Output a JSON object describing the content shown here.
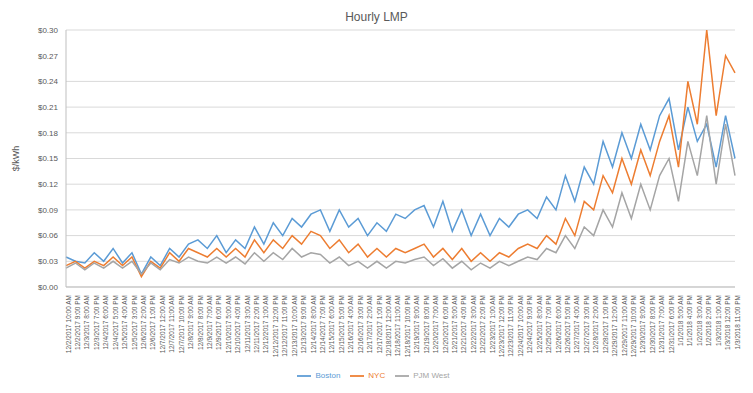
{
  "chart_data": {
    "type": "line",
    "title": "Hourly LMP",
    "y_label": "$/kWh",
    "categories": [
      "12/2/2017 10:00 AM",
      "12/2/2017 9:00 PM",
      "12/3/2017 8:00 AM",
      "12/3/2017 7:00 PM",
      "12/4/2017 6:00 AM",
      "12/4/2017 5:00 PM",
      "12/5/2017 4:00 AM",
      "12/5/2017 3:00 PM",
      "12/6/2017 2:00 AM",
      "12/6/2017 1:00 PM",
      "12/7/2017 12:00 AM",
      "12/7/2017 11:00 AM",
      "12/7/2017 10:00 PM",
      "12/8/2017 9:00 AM",
      "12/8/2017 8:00 PM",
      "12/9/2017 7:00 AM",
      "12/9/2017 6:00 PM",
      "12/10/2017 5:00 AM",
      "12/10/2017 4:00 PM",
      "12/11/2017 3:00 AM",
      "12/11/2017 2:00 PM",
      "12/12/2017 1:00 AM",
      "12/12/2017 12:00 PM",
      "12/12/2017 11:00 PM",
      "12/13/2017 10:00 AM",
      "12/13/2017 9:00 PM",
      "12/14/2017 8:00 AM",
      "12/14/2017 7:00 PM",
      "12/15/2017 6:00 AM",
      "12/15/2017 5:00 PM",
      "12/16/2017 4:00 AM",
      "12/16/2017 3:00 PM",
      "12/17/2017 2:00 AM",
      "12/17/2017 1:00 PM",
      "12/18/2017 12:00 AM",
      "12/18/2017 11:00 AM",
      "12/18/2017 10:00 PM",
      "12/19/2017 9:00 AM",
      "12/19/2017 8:00 PM",
      "12/20/2017 7:00 AM",
      "12/20/2017 6:00 PM",
      "12/21/2017 5:00 AM",
      "12/21/2017 4:00 PM",
      "12/22/2017 3:00 AM",
      "12/22/2017 2:00 PM",
      "12/23/2017 1:00 AM",
      "12/23/2017 12:00 PM",
      "12/23/2017 11:00 PM",
      "12/24/2017 10:00 AM",
      "12/24/2017 9:00 PM",
      "12/25/2017 8:00 AM",
      "12/25/2017 7:00 PM",
      "12/26/2017 6:00 AM",
      "12/26/2017 5:00 PM",
      "12/27/2017 4:00 AM",
      "12/27/2017 3:00 PM",
      "12/28/2017 2:00 AM",
      "12/28/2017 1:00 PM",
      "12/29/2017 12:00 AM",
      "12/29/2017 11:00 AM",
      "12/29/2017 10:00 PM",
      "12/30/2017 9:00 AM",
      "12/30/2017 8:00 PM",
      "12/31/2017 7:00 AM",
      "12/31/2017 6:00 PM",
      "1/1/2018 5:00 AM",
      "1/1/2018 4:00 PM",
      "1/2/2018 3:00 AM",
      "1/2/2018 2:00 PM",
      "1/3/2018 1:00 AM",
      "1/3/2018 12:00 PM",
      "1/3/2018 11:00 PM"
    ],
    "series": [
      {
        "name": "Boston",
        "color": "#5b9bd5",
        "values": [
          0.035,
          0.03,
          0.028,
          0.04,
          0.03,
          0.045,
          0.028,
          0.04,
          0.015,
          0.035,
          0.025,
          0.045,
          0.035,
          0.05,
          0.055,
          0.045,
          0.06,
          0.04,
          0.055,
          0.045,
          0.07,
          0.05,
          0.075,
          0.06,
          0.08,
          0.07,
          0.085,
          0.09,
          0.065,
          0.09,
          0.07,
          0.08,
          0.06,
          0.075,
          0.065,
          0.085,
          0.08,
          0.09,
          0.095,
          0.07,
          0.1,
          0.065,
          0.09,
          0.06,
          0.085,
          0.06,
          0.08,
          0.07,
          0.085,
          0.09,
          0.08,
          0.105,
          0.09,
          0.13,
          0.1,
          0.14,
          0.12,
          0.17,
          0.14,
          0.18,
          0.15,
          0.19,
          0.16,
          0.2,
          0.22,
          0.16,
          0.21,
          0.17,
          0.19,
          0.14,
          0.2,
          0.15
        ]
      },
      {
        "name": "NYC",
        "color": "#ed7d31",
        "values": [
          0.025,
          0.03,
          0.022,
          0.03,
          0.025,
          0.035,
          0.025,
          0.035,
          0.012,
          0.03,
          0.022,
          0.04,
          0.03,
          0.045,
          0.04,
          0.035,
          0.045,
          0.035,
          0.045,
          0.035,
          0.055,
          0.04,
          0.055,
          0.045,
          0.06,
          0.05,
          0.065,
          0.06,
          0.045,
          0.055,
          0.04,
          0.05,
          0.035,
          0.045,
          0.035,
          0.045,
          0.04,
          0.045,
          0.05,
          0.035,
          0.045,
          0.032,
          0.045,
          0.03,
          0.04,
          0.03,
          0.04,
          0.035,
          0.045,
          0.05,
          0.045,
          0.06,
          0.05,
          0.08,
          0.06,
          0.1,
          0.09,
          0.13,
          0.11,
          0.15,
          0.12,
          0.16,
          0.13,
          0.17,
          0.2,
          0.14,
          0.24,
          0.19,
          0.3,
          0.2,
          0.27,
          0.25
        ]
      },
      {
        "name": "PJM West",
        "color": "#a5a5a5",
        "values": [
          0.022,
          0.028,
          0.02,
          0.028,
          0.022,
          0.03,
          0.022,
          0.03,
          0.015,
          0.028,
          0.02,
          0.032,
          0.028,
          0.035,
          0.03,
          0.028,
          0.035,
          0.028,
          0.035,
          0.027,
          0.04,
          0.03,
          0.04,
          0.032,
          0.045,
          0.035,
          0.04,
          0.038,
          0.028,
          0.035,
          0.025,
          0.03,
          0.022,
          0.03,
          0.022,
          0.03,
          0.028,
          0.032,
          0.035,
          0.025,
          0.033,
          0.022,
          0.03,
          0.02,
          0.028,
          0.022,
          0.03,
          0.025,
          0.03,
          0.035,
          0.032,
          0.045,
          0.04,
          0.06,
          0.045,
          0.07,
          0.06,
          0.09,
          0.07,
          0.11,
          0.08,
          0.12,
          0.09,
          0.13,
          0.15,
          0.1,
          0.17,
          0.13,
          0.2,
          0.12,
          0.19,
          0.13
        ]
      }
    ],
    "ylim": [
      0,
      0.3
    ],
    "yticks": [
      {
        "value": 0,
        "label": "$0.00"
      },
      {
        "value": 0.03,
        "label": "$0.03"
      },
      {
        "value": 0.06,
        "label": "$0.06"
      },
      {
        "value": 0.09,
        "label": "$0.09"
      },
      {
        "value": 0.12,
        "label": "$0.12"
      },
      {
        "value": 0.15,
        "label": "$0.15"
      },
      {
        "value": 0.18,
        "label": "$0.18"
      },
      {
        "value": 0.21,
        "label": "$0.21"
      },
      {
        "value": 0.24,
        "label": "$0.24"
      },
      {
        "value": 0.27,
        "label": "$0.27"
      },
      {
        "value": 0.3,
        "label": "$0.30"
      }
    ],
    "grid": true,
    "legend": "bottom",
    "marker": "none",
    "line_style": "solid"
  }
}
